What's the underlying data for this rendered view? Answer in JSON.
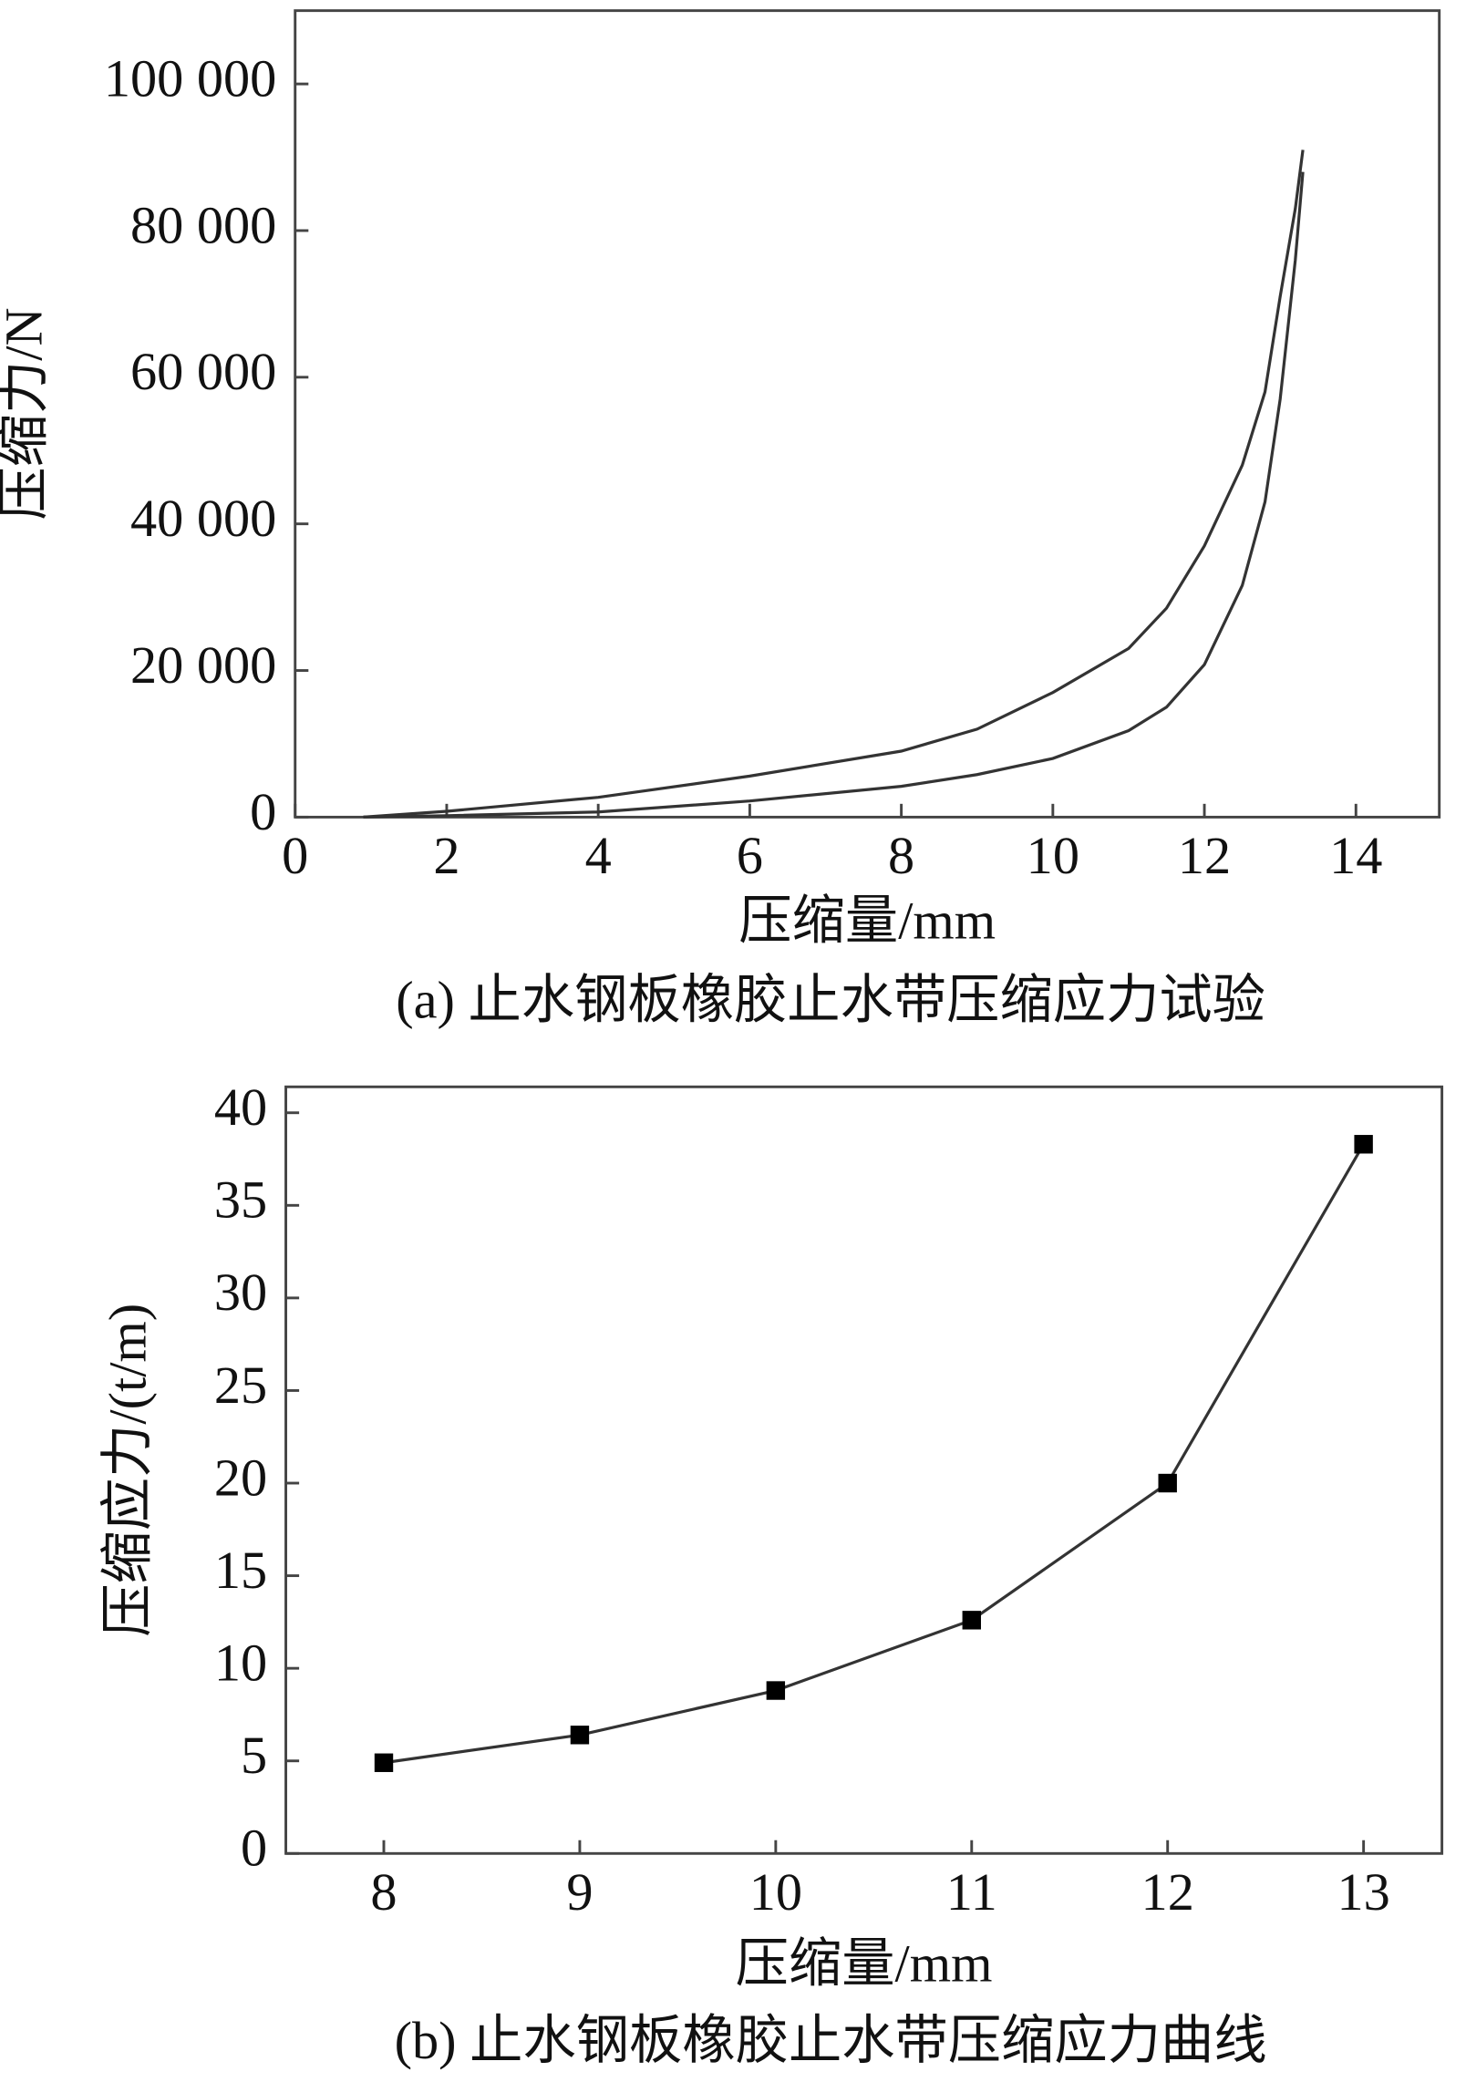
{
  "chart_data": [
    {
      "type": "line",
      "caption": "(a) 止水钢板橡胶止水带压缩应力试验",
      "xlabel": "压缩量/mm",
      "ylabel": "压缩力/N",
      "xlim": [
        0,
        15.1
      ],
      "ylim": [
        0,
        110000
      ],
      "xticks": [
        0,
        2,
        4,
        6,
        8,
        10,
        12,
        14
      ],
      "yticks": [
        0,
        {
          "value": 20000,
          "label": "20 000"
        },
        {
          "value": 40000,
          "label": "40 000"
        },
        {
          "value": 60000,
          "label": "60 000"
        },
        {
          "value": 80000,
          "label": "80 000"
        },
        {
          "value": 100000,
          "label": "100 000"
        }
      ],
      "series": [
        {
          "color": "#333333",
          "x": [
            0.9,
            2,
            4,
            6,
            8,
            9,
            10,
            11,
            11.5,
            12,
            12.5,
            12.8,
            13,
            13.2,
            13.3
          ],
          "values": [
            0,
            800,
            2700,
            5600,
            9000,
            12000,
            17000,
            23000,
            28500,
            37000,
            48000,
            58000,
            71000,
            83000,
            91000
          ]
        },
        {
          "color": "#333333",
          "x": [
            0.9,
            2,
            4,
            6,
            8,
            9,
            10,
            11,
            11.5,
            12,
            12.5,
            12.8,
            13,
            13.2,
            13.3
          ],
          "values": [
            0,
            200,
            700,
            2200,
            4200,
            5800,
            8000,
            11800,
            15000,
            20800,
            31600,
            43000,
            57000,
            76000,
            88000
          ]
        }
      ]
    },
    {
      "type": "line",
      "marker": "square",
      "caption": "(b) 止水钢板橡胶止水带压缩应力曲线",
      "xlabel": "压缩量/mm",
      "ylabel": "压缩应力/(t/m)",
      "xlim": [
        7.5,
        13.4
      ],
      "ylim": [
        0,
        41.4
      ],
      "xticks": [
        8,
        9,
        10,
        11,
        12,
        13
      ],
      "yticks": [
        0,
        5,
        10,
        15,
        20,
        25,
        30,
        35,
        40
      ],
      "x": [
        8,
        9,
        10,
        11,
        12,
        13
      ],
      "series": [
        {
          "color": "#333333",
          "values": [
            4.9,
            6.4,
            8.8,
            12.6,
            20,
            38.3
          ]
        }
      ]
    }
  ]
}
